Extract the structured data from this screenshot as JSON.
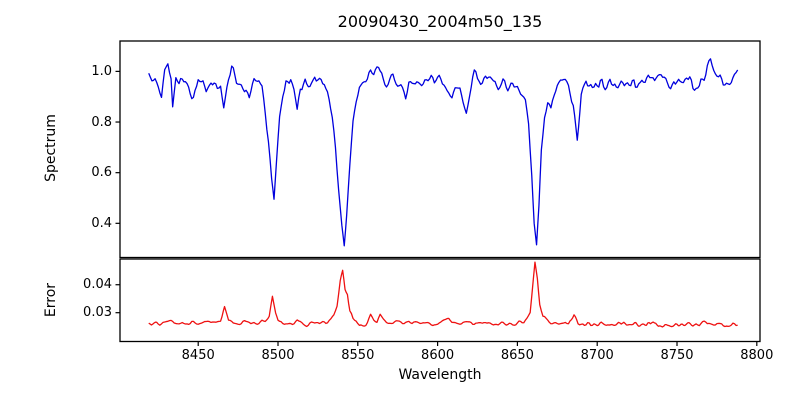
{
  "title": "20090430_2004m50_135",
  "chart_data": {
    "type": "line",
    "title": "20090430_2004m50_135",
    "xlabel": "Wavelength",
    "xlim": [
      8401,
      8802
    ],
    "x_ticks": [
      {
        "v": 8450,
        "label": "8450"
      },
      {
        "v": 8500,
        "label": "8500"
      },
      {
        "v": 8550,
        "label": "8550"
      },
      {
        "v": 8600,
        "label": "8600"
      },
      {
        "v": 8650,
        "label": "8650"
      },
      {
        "v": 8700,
        "label": "8700"
      },
      {
        "v": 8750,
        "label": "8750"
      },
      {
        "v": 8800,
        "label": "8800"
      }
    ],
    "grid": false,
    "legend": null,
    "panels": [
      {
        "name": "spectrum",
        "ylabel": "Spectrum",
        "ylim": [
          0.265,
          1.12
        ],
        "y_ticks": [
          {
            "v": 1.0,
            "label": "1.0"
          },
          {
            "v": 0.8,
            "label": "0.8"
          },
          {
            "v": 0.6,
            "label": "0.6"
          },
          {
            "v": 0.4,
            "label": "0.4"
          }
        ],
        "color": "#0000dd",
        "line_width": 1.3,
        "noise": {
          "seed": 20090430,
          "amplitude": 0.04,
          "relative": true
        },
        "sample_step": 0.9,
        "description": "Normalized stellar spectrum, continuum near 1.0 with Ca II triplet absorption lines at 8498, 8542, 8662 plus weaker lines",
        "keypoints": [
          [
            8419,
            0.975
          ],
          [
            8422,
            0.96
          ],
          [
            8425,
            0.945
          ],
          [
            8427,
            0.89
          ],
          [
            8429,
            0.99
          ],
          [
            8431,
            1.045
          ],
          [
            8433,
            0.95
          ],
          [
            8434,
            0.835
          ],
          [
            8436,
            0.95
          ],
          [
            8439,
            0.965
          ],
          [
            8442,
            0.945
          ],
          [
            8445,
            0.915
          ],
          [
            8447,
            0.9
          ],
          [
            8450,
            0.965
          ],
          [
            8453,
            0.945
          ],
          [
            8455,
            0.925
          ],
          [
            8458,
            0.97
          ],
          [
            8461,
            0.955
          ],
          [
            8464,
            0.945
          ],
          [
            8466,
            0.875
          ],
          [
            8468,
            0.925
          ],
          [
            8471,
            1.02
          ],
          [
            8474,
            0.975
          ],
          [
            8477,
            0.955
          ],
          [
            8480,
            0.93
          ],
          [
            8482,
            0.91
          ],
          [
            8485,
            0.965
          ],
          [
            8488,
            0.955
          ],
          [
            8490,
            0.925
          ],
          [
            8492,
            0.85
          ],
          [
            8494,
            0.72
          ],
          [
            8496,
            0.56
          ],
          [
            8497.5,
            0.48
          ],
          [
            8499,
            0.62
          ],
          [
            8501,
            0.8
          ],
          [
            8503,
            0.9
          ],
          [
            8505,
            0.955
          ],
          [
            8508,
            0.965
          ],
          [
            8510,
            0.92
          ],
          [
            8512,
            0.845
          ],
          [
            8514,
            0.925
          ],
          [
            8517,
            0.955
          ],
          [
            8520,
            0.93
          ],
          [
            8523,
            0.975
          ],
          [
            8526,
            0.95
          ],
          [
            8529,
            0.955
          ],
          [
            8531,
            0.925
          ],
          [
            8534,
            0.82
          ],
          [
            8536,
            0.7
          ],
          [
            8538,
            0.55
          ],
          [
            8540,
            0.4
          ],
          [
            8541.5,
            0.315
          ],
          [
            8543,
            0.43
          ],
          [
            8545,
            0.63
          ],
          [
            8547,
            0.79
          ],
          [
            8549,
            0.875
          ],
          [
            8551,
            0.93
          ],
          [
            8554,
            0.965
          ],
          [
            8557,
            0.985
          ],
          [
            8560,
            0.995
          ],
          [
            8563,
            1.02
          ],
          [
            8566,
            0.965
          ],
          [
            8569,
            0.955
          ],
          [
            8572,
            0.975
          ],
          [
            8575,
            0.955
          ],
          [
            8578,
            0.925
          ],
          [
            8580,
            0.875
          ],
          [
            8582,
            0.945
          ],
          [
            8585,
            0.97
          ],
          [
            8588,
            0.955
          ],
          [
            8592,
            0.975
          ],
          [
            8595,
            0.965
          ],
          [
            8598,
            0.955
          ],
          [
            8601,
            0.975
          ],
          [
            8604,
            0.955
          ],
          [
            8607,
            0.925
          ],
          [
            8609,
            0.885
          ],
          [
            8611,
            0.945
          ],
          [
            8614,
            0.955
          ],
          [
            8616,
            0.9
          ],
          [
            8618,
            0.86
          ],
          [
            8620,
            0.93
          ],
          [
            8623,
            0.975
          ],
          [
            8626,
            0.995
          ],
          [
            8629,
            0.965
          ],
          [
            8632,
            0.985
          ],
          [
            8635,
            0.965
          ],
          [
            8638,
            0.955
          ],
          [
            8641,
            0.965
          ],
          [
            8644,
            0.945
          ],
          [
            8647,
            0.955
          ],
          [
            8650,
            0.945
          ],
          [
            8653,
            0.925
          ],
          [
            8655,
            0.885
          ],
          [
            8657,
            0.8
          ],
          [
            8659,
            0.6
          ],
          [
            8660.5,
            0.4
          ],
          [
            8662,
            0.315
          ],
          [
            8663.5,
            0.46
          ],
          [
            8665,
            0.68
          ],
          [
            8667,
            0.815
          ],
          [
            8669,
            0.865
          ],
          [
            8671,
            0.83
          ],
          [
            8673,
            0.905
          ],
          [
            8676,
            0.955
          ],
          [
            8679,
            0.965
          ],
          [
            8682,
            0.935
          ],
          [
            8685,
            0.875
          ],
          [
            8687.5,
            0.735
          ],
          [
            8690,
            0.9
          ],
          [
            8693,
            0.965
          ],
          [
            8696,
            0.955
          ],
          [
            8700,
            0.965
          ],
          [
            8704,
            0.945
          ],
          [
            8708,
            0.965
          ],
          [
            8712,
            0.945
          ],
          [
            8716,
            0.955
          ],
          [
            8720,
            0.965
          ],
          [
            8724,
            0.945
          ],
          [
            8728,
            0.965
          ],
          [
            8732,
            0.975
          ],
          [
            8736,
            0.955
          ],
          [
            8740,
            0.965
          ],
          [
            8744,
            0.955
          ],
          [
            8748,
            0.965
          ],
          [
            8752,
            0.955
          ],
          [
            8756,
            0.965
          ],
          [
            8760,
            0.945
          ],
          [
            8764,
            0.955
          ],
          [
            8768,
            0.985
          ],
          [
            8771,
            1.055
          ],
          [
            8773,
            0.985
          ],
          [
            8776,
            0.955
          ],
          [
            8779,
            0.965
          ],
          [
            8782,
            0.975
          ],
          [
            8785,
            0.985
          ],
          [
            8788,
            0.995
          ]
        ]
      },
      {
        "name": "error",
        "ylabel": "Error",
        "ylim": [
          0.0197,
          0.0492
        ],
        "y_ticks": [
          {
            "v": 0.04,
            "label": "0.04"
          },
          {
            "v": 0.03,
            "label": "0.03"
          }
        ],
        "color": "#ee1111",
        "line_width": 1.3,
        "noise": {
          "seed": 2004135,
          "amplitude": 0.0011,
          "relative": false
        },
        "sample_step": 0.9,
        "description": "Error spectrum, baseline about 0.026 with peaks at the absorption-line wavelengths",
        "keypoints": [
          [
            8419,
            0.0252
          ],
          [
            8424,
            0.0262
          ],
          [
            8428,
            0.0265
          ],
          [
            8432,
            0.027
          ],
          [
            8434,
            0.0273
          ],
          [
            8437,
            0.0264
          ],
          [
            8441,
            0.0267
          ],
          [
            8445,
            0.0266
          ],
          [
            8449,
            0.0263
          ],
          [
            8453,
            0.0266
          ],
          [
            8457,
            0.0264
          ],
          [
            8461,
            0.0266
          ],
          [
            8464,
            0.027
          ],
          [
            8466.5,
            0.0313
          ],
          [
            8469,
            0.0272
          ],
          [
            8473,
            0.0263
          ],
          [
            8477,
            0.0264
          ],
          [
            8481,
            0.0262
          ],
          [
            8485,
            0.0263
          ],
          [
            8489,
            0.0266
          ],
          [
            8492,
            0.0272
          ],
          [
            8494.5,
            0.029
          ],
          [
            8496.5,
            0.0363
          ],
          [
            8498.5,
            0.03
          ],
          [
            8500,
            0.027
          ],
          [
            8503,
            0.0261
          ],
          [
            8507,
            0.0259
          ],
          [
            8510,
            0.0265
          ],
          [
            8512,
            0.0272
          ],
          [
            8515,
            0.0263
          ],
          [
            8518,
            0.0258
          ],
          [
            8522,
            0.0261
          ],
          [
            8526,
            0.0263
          ],
          [
            8530,
            0.0266
          ],
          [
            8533,
            0.0275
          ],
          [
            8535,
            0.0292
          ],
          [
            8537,
            0.033
          ],
          [
            8539,
            0.0418
          ],
          [
            8540.5,
            0.0443
          ],
          [
            8542,
            0.0385
          ],
          [
            8543.5,
            0.0368
          ],
          [
            8545,
            0.0312
          ],
          [
            8547,
            0.0282
          ],
          [
            8549,
            0.0268
          ],
          [
            8551,
            0.0258
          ],
          [
            8553,
            0.0248
          ],
          [
            8556,
            0.0263
          ],
          [
            8558,
            0.0288
          ],
          [
            8560,
            0.0266
          ],
          [
            8562,
            0.026
          ],
          [
            8564,
            0.0288
          ],
          [
            8566,
            0.0268
          ],
          [
            8569,
            0.026
          ],
          [
            8573,
            0.0262
          ],
          [
            8577,
            0.0264
          ],
          [
            8580,
            0.0268
          ],
          [
            8584,
            0.0262
          ],
          [
            8588,
            0.0261
          ],
          [
            8592,
            0.0262
          ],
          [
            8596,
            0.026
          ],
          [
            8600,
            0.0262
          ],
          [
            8604,
            0.0267
          ],
          [
            8607,
            0.0272
          ],
          [
            8610,
            0.0264
          ],
          [
            8613,
            0.0262
          ],
          [
            8616,
            0.0266
          ],
          [
            8619,
            0.0262
          ],
          [
            8623,
            0.0261
          ],
          [
            8627,
            0.0262
          ],
          [
            8631,
            0.0262
          ],
          [
            8635,
            0.0261
          ],
          [
            8639,
            0.0262
          ],
          [
            8643,
            0.0261
          ],
          [
            8647,
            0.0263
          ],
          [
            8651,
            0.0264
          ],
          [
            8654,
            0.0268
          ],
          [
            8656,
            0.0278
          ],
          [
            8658,
            0.031
          ],
          [
            8660,
            0.042
          ],
          [
            8661,
            0.0478
          ],
          [
            8662.5,
            0.0428
          ],
          [
            8664,
            0.033
          ],
          [
            8666,
            0.029
          ],
          [
            8668,
            0.0273
          ],
          [
            8671,
            0.0267
          ],
          [
            8675,
            0.0262
          ],
          [
            8679,
            0.026
          ],
          [
            8682,
            0.0264
          ],
          [
            8685.5,
            0.0293
          ],
          [
            8688,
            0.0268
          ],
          [
            8692,
            0.0261
          ],
          [
            8696,
            0.0259
          ],
          [
            8700,
            0.0261
          ],
          [
            8705,
            0.0259
          ],
          [
            8710,
            0.026
          ],
          [
            8715,
            0.0259
          ],
          [
            8720,
            0.0261
          ],
          [
            8725,
            0.0257
          ],
          [
            8730,
            0.0259
          ],
          [
            8735,
            0.0261
          ],
          [
            8740,
            0.0257
          ],
          [
            8745,
            0.0259
          ],
          [
            8750,
            0.0257
          ],
          [
            8755,
            0.0259
          ],
          [
            8760,
            0.0255
          ],
          [
            8764,
            0.0257
          ],
          [
            8768,
            0.027
          ],
          [
            8771,
            0.0262
          ],
          [
            8774,
            0.0258
          ],
          [
            8778,
            0.0257
          ],
          [
            8782,
            0.0255
          ],
          [
            8785,
            0.0261
          ],
          [
            8788,
            0.0257
          ]
        ]
      }
    ],
    "axis_color": "#000000",
    "background_color": "#ffffff"
  }
}
